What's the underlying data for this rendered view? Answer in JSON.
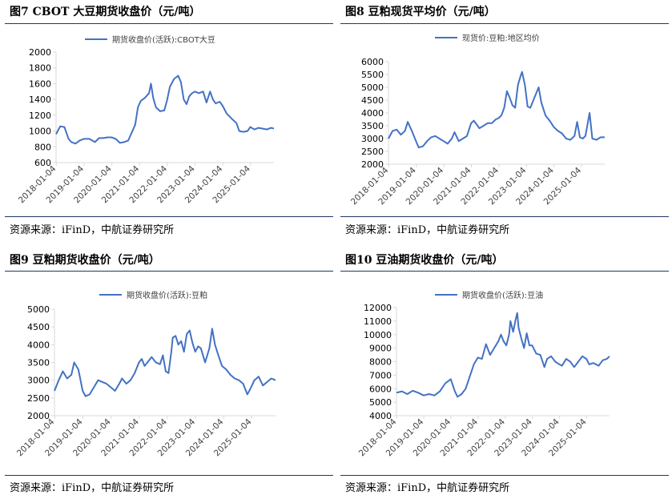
{
  "source_note": "资源来源：iFinD，中航证券研究所",
  "colors": {
    "series": "#4472c4",
    "rule": "#1f3864",
    "axis": "#d9d9d9",
    "text": "#404040"
  },
  "chart_data": [
    {
      "figure_title": "图7  CBOT 大豆期货收盘价（元/吨）",
      "type": "line",
      "legend": "期货收盘价(活跃):CBOT大豆",
      "x_ticks": [
        "2018-01-04",
        "2019-01-04",
        "2020-01-04",
        "2021-01-04",
        "2022-01-04",
        "2023-01-04",
        "2024-01-04",
        "2025-01-04"
      ],
      "x_range": [
        2018.0,
        2025.85
      ],
      "y_ticks": [
        600,
        800,
        1000,
        1200,
        1400,
        1600,
        1800,
        2000
      ],
      "ylim": [
        600,
        2000
      ],
      "series": [
        {
          "values": [
            [
              2018.0,
              960
            ],
            [
              2018.15,
              1060
            ],
            [
              2018.3,
              1050
            ],
            [
              2018.45,
              900
            ],
            [
              2018.55,
              860
            ],
            [
              2018.7,
              840
            ],
            [
              2018.85,
              880
            ],
            [
              2019.0,
              900
            ],
            [
              2019.2,
              900
            ],
            [
              2019.4,
              860
            ],
            [
              2019.55,
              910
            ],
            [
              2019.7,
              910
            ],
            [
              2019.85,
              920
            ],
            [
              2020.0,
              920
            ],
            [
              2020.15,
              900
            ],
            [
              2020.3,
              850
            ],
            [
              2020.45,
              860
            ],
            [
              2020.6,
              880
            ],
            [
              2020.75,
              1000
            ],
            [
              2020.85,
              1080
            ],
            [
              2020.95,
              1300
            ],
            [
              2021.05,
              1380
            ],
            [
              2021.2,
              1420
            ],
            [
              2021.35,
              1480
            ],
            [
              2021.42,
              1600
            ],
            [
              2021.5,
              1420
            ],
            [
              2021.6,
              1300
            ],
            [
              2021.75,
              1250
            ],
            [
              2021.9,
              1260
            ],
            [
              2022.0,
              1390
            ],
            [
              2022.1,
              1560
            ],
            [
              2022.25,
              1660
            ],
            [
              2022.4,
              1700
            ],
            [
              2022.5,
              1620
            ],
            [
              2022.6,
              1400
            ],
            [
              2022.7,
              1340
            ],
            [
              2022.8,
              1440
            ],
            [
              2022.9,
              1480
            ],
            [
              2023.0,
              1500
            ],
            [
              2023.15,
              1480
            ],
            [
              2023.3,
              1500
            ],
            [
              2023.42,
              1360
            ],
            [
              2023.55,
              1500
            ],
            [
              2023.65,
              1400
            ],
            [
              2023.75,
              1350
            ],
            [
              2023.9,
              1370
            ],
            [
              2024.0,
              1320
            ],
            [
              2024.15,
              1220
            ],
            [
              2024.35,
              1150
            ],
            [
              2024.5,
              1100
            ],
            [
              2024.6,
              1000
            ],
            [
              2024.75,
              990
            ],
            [
              2024.9,
              1000
            ],
            [
              2025.0,
              1050
            ],
            [
              2025.15,
              1020
            ],
            [
              2025.3,
              1040
            ],
            [
              2025.45,
              1030
            ],
            [
              2025.6,
              1020
            ],
            [
              2025.75,
              1040
            ],
            [
              2025.85,
              1030
            ]
          ]
        }
      ]
    },
    {
      "figure_title": "图8  豆粕现货平均价（元/吨）",
      "type": "line",
      "legend": "现货价:豆粕:地区均价",
      "x_ticks": [
        "2018-01-04",
        "2019-01-04",
        "2020-01-04",
        "2021-01-04",
        "2022-01-04",
        "2023-01-04",
        "2024-01-04",
        "2025-01-04"
      ],
      "x_range": [
        2018.0,
        2025.85
      ],
      "y_ticks": [
        2000,
        2500,
        3000,
        3500,
        4000,
        4500,
        5000,
        5500,
        6000
      ],
      "ylim": [
        2000,
        6000
      ],
      "series": [
        {
          "values": [
            [
              2018.0,
              3000
            ],
            [
              2018.15,
              3300
            ],
            [
              2018.3,
              3350
            ],
            [
              2018.45,
              3150
            ],
            [
              2018.6,
              3300
            ],
            [
              2018.7,
              3650
            ],
            [
              2018.85,
              3300
            ],
            [
              2019.0,
              2900
            ],
            [
              2019.1,
              2650
            ],
            [
              2019.25,
              2700
            ],
            [
              2019.4,
              2900
            ],
            [
              2019.55,
              3050
            ],
            [
              2019.7,
              3100
            ],
            [
              2019.85,
              3000
            ],
            [
              2020.0,
              2900
            ],
            [
              2020.15,
              2800
            ],
            [
              2020.3,
              3000
            ],
            [
              2020.4,
              3250
            ],
            [
              2020.55,
              2900
            ],
            [
              2020.7,
              3000
            ],
            [
              2020.85,
              3100
            ],
            [
              2021.0,
              3600
            ],
            [
              2021.1,
              3700
            ],
            [
              2021.2,
              3550
            ],
            [
              2021.3,
              3400
            ],
            [
              2021.45,
              3500
            ],
            [
              2021.6,
              3600
            ],
            [
              2021.75,
              3600
            ],
            [
              2021.9,
              3750
            ],
            [
              2022.0,
              3800
            ],
            [
              2022.1,
              3900
            ],
            [
              2022.2,
              4200
            ],
            [
              2022.3,
              4850
            ],
            [
              2022.4,
              4600
            ],
            [
              2022.5,
              4300
            ],
            [
              2022.6,
              4200
            ],
            [
              2022.7,
              5100
            ],
            [
              2022.8,
              5450
            ],
            [
              2022.85,
              5600
            ],
            [
              2022.95,
              5100
            ],
            [
              2023.05,
              4250
            ],
            [
              2023.15,
              4200
            ],
            [
              2023.3,
              4600
            ],
            [
              2023.45,
              5000
            ],
            [
              2023.55,
              4400
            ],
            [
              2023.7,
              3900
            ],
            [
              2023.85,
              3700
            ],
            [
              2024.0,
              3450
            ],
            [
              2024.15,
              3300
            ],
            [
              2024.3,
              3200
            ],
            [
              2024.45,
              3000
            ],
            [
              2024.6,
              2950
            ],
            [
              2024.75,
              3100
            ],
            [
              2024.85,
              3650
            ],
            [
              2024.95,
              3050
            ],
            [
              2025.05,
              3000
            ],
            [
              2025.15,
              3100
            ],
            [
              2025.3,
              4000
            ],
            [
              2025.4,
              3000
            ],
            [
              2025.55,
              2950
            ],
            [
              2025.7,
              3050
            ],
            [
              2025.85,
              3050
            ]
          ]
        }
      ]
    },
    {
      "figure_title": "图9  豆粕期货收盘价（元/吨）",
      "type": "line",
      "legend": "期货收盘价(活跃):豆粕",
      "x_ticks": [
        "2018-01-04",
        "2019-01-04",
        "2020-01-04",
        "2021-01-04",
        "2022-01-04",
        "2023-01-04",
        "2024-01-04",
        "2025-01-04"
      ],
      "x_range": [
        2018.0,
        2025.85
      ],
      "y_ticks": [
        2000,
        2500,
        3000,
        3500,
        4000,
        4500,
        5000
      ],
      "ylim": [
        2000,
        5000
      ],
      "series": [
        {
          "values": [
            [
              2018.0,
              2700
            ],
            [
              2018.15,
              3000
            ],
            [
              2018.3,
              3250
            ],
            [
              2018.45,
              3050
            ],
            [
              2018.6,
              3150
            ],
            [
              2018.7,
              3500
            ],
            [
              2018.85,
              3300
            ],
            [
              2019.0,
              2700
            ],
            [
              2019.1,
              2550
            ],
            [
              2019.25,
              2600
            ],
            [
              2019.4,
              2800
            ],
            [
              2019.55,
              3000
            ],
            [
              2019.7,
              2950
            ],
            [
              2019.85,
              2900
            ],
            [
              2020.0,
              2800
            ],
            [
              2020.15,
              2700
            ],
            [
              2020.3,
              2900
            ],
            [
              2020.4,
              3050
            ],
            [
              2020.55,
              2900
            ],
            [
              2020.7,
              3000
            ],
            [
              2020.85,
              3200
            ],
            [
              2021.0,
              3500
            ],
            [
              2021.1,
              3600
            ],
            [
              2021.2,
              3400
            ],
            [
              2021.3,
              3500
            ],
            [
              2021.45,
              3650
            ],
            [
              2021.6,
              3500
            ],
            [
              2021.75,
              3450
            ],
            [
              2021.85,
              3700
            ],
            [
              2021.95,
              3250
            ],
            [
              2022.05,
              3200
            ],
            [
              2022.15,
              3800
            ],
            [
              2022.2,
              4200
            ],
            [
              2022.3,
              4250
            ],
            [
              2022.4,
              4000
            ],
            [
              2022.5,
              4100
            ],
            [
              2022.6,
              3800
            ],
            [
              2022.7,
              4300
            ],
            [
              2022.8,
              4400
            ],
            [
              2022.9,
              4050
            ],
            [
              2023.0,
              3800
            ],
            [
              2023.1,
              3950
            ],
            [
              2023.2,
              3900
            ],
            [
              2023.35,
              3500
            ],
            [
              2023.5,
              3900
            ],
            [
              2023.6,
              4450
            ],
            [
              2023.7,
              4000
            ],
            [
              2023.8,
              3750
            ],
            [
              2023.95,
              3400
            ],
            [
              2024.1,
              3300
            ],
            [
              2024.25,
              3150
            ],
            [
              2024.4,
              3050
            ],
            [
              2024.55,
              3000
            ],
            [
              2024.7,
              2900
            ],
            [
              2024.85,
              2600
            ],
            [
              2024.95,
              2750
            ],
            [
              2025.1,
              3000
            ],
            [
              2025.25,
              3100
            ],
            [
              2025.4,
              2850
            ],
            [
              2025.55,
              2950
            ],
            [
              2025.7,
              3050
            ],
            [
              2025.85,
              3000
            ]
          ]
        }
      ]
    },
    {
      "figure_title": "图10  豆油期货收盘价（元/吨）",
      "type": "line",
      "legend": "期货收盘价(活跃):豆油",
      "x_ticks": [
        "2018-01-04",
        "2019-01-04",
        "2020-01-04",
        "2021-01-04",
        "2022-01-04",
        "2023-01-04",
        "2024-01-04",
        "2025-01-04"
      ],
      "x_range": [
        2018.0,
        2025.85
      ],
      "y_ticks": [
        4000,
        5000,
        6000,
        7000,
        8000,
        9000,
        10000,
        11000,
        12000
      ],
      "ylim": [
        4000,
        12000
      ],
      "series": [
        {
          "values": [
            [
              2018.0,
              5700
            ],
            [
              2018.2,
              5800
            ],
            [
              2018.4,
              5600
            ],
            [
              2018.6,
              5850
            ],
            [
              2018.8,
              5700
            ],
            [
              2019.0,
              5500
            ],
            [
              2019.2,
              5600
            ],
            [
              2019.4,
              5500
            ],
            [
              2019.6,
              5800
            ],
            [
              2019.8,
              6400
            ],
            [
              2020.0,
              6700
            ],
            [
              2020.15,
              5800
            ],
            [
              2020.25,
              5400
            ],
            [
              2020.4,
              5600
            ],
            [
              2020.55,
              6000
            ],
            [
              2020.7,
              6900
            ],
            [
              2020.85,
              7800
            ],
            [
              2021.0,
              8300
            ],
            [
              2021.15,
              8200
            ],
            [
              2021.3,
              9300
            ],
            [
              2021.45,
              8500
            ],
            [
              2021.6,
              9000
            ],
            [
              2021.75,
              9500
            ],
            [
              2021.85,
              10000
            ],
            [
              2021.95,
              9500
            ],
            [
              2022.05,
              9200
            ],
            [
              2022.15,
              10000
            ],
            [
              2022.2,
              11000
            ],
            [
              2022.3,
              10200
            ],
            [
              2022.4,
              11200
            ],
            [
              2022.45,
              11600
            ],
            [
              2022.5,
              10500
            ],
            [
              2022.6,
              9700
            ],
            [
              2022.7,
              9000
            ],
            [
              2022.8,
              10100
            ],
            [
              2022.9,
              9200
            ],
            [
              2023.0,
              9200
            ],
            [
              2023.15,
              8600
            ],
            [
              2023.3,
              8500
            ],
            [
              2023.45,
              7600
            ],
            [
              2023.55,
              8200
            ],
            [
              2023.7,
              8400
            ],
            [
              2023.85,
              8000
            ],
            [
              2024.0,
              7800
            ],
            [
              2024.1,
              7700
            ],
            [
              2024.25,
              8200
            ],
            [
              2024.4,
              8000
            ],
            [
              2024.55,
              7600
            ],
            [
              2024.7,
              8000
            ],
            [
              2024.85,
              8400
            ],
            [
              2025.0,
              8200
            ],
            [
              2025.1,
              7800
            ],
            [
              2025.25,
              7900
            ],
            [
              2025.45,
              7700
            ],
            [
              2025.6,
              8100
            ],
            [
              2025.75,
              8200
            ],
            [
              2025.85,
              8400
            ]
          ]
        }
      ]
    }
  ]
}
